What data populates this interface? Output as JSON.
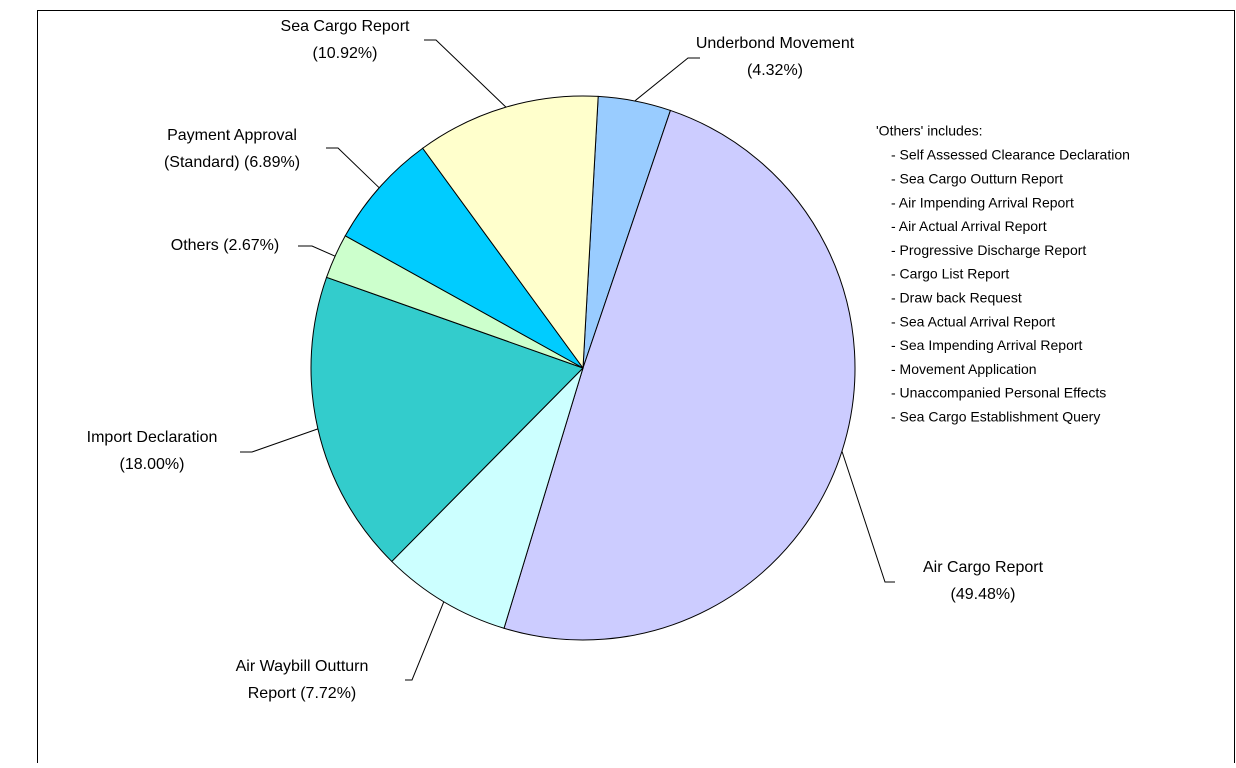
{
  "chart_data": {
    "type": "pie",
    "values": [
      4.32,
      49.48,
      7.72,
      18.0,
      2.67,
      6.89,
      10.92
    ],
    "value_labels": [
      [
        "Underbond Movement",
        "(4.32%)"
      ],
      [
        "Air Cargo Report",
        "(49.48%)"
      ],
      [
        "Air Waybill Outturn",
        "Report (7.72%)"
      ],
      [
        "Import Declaration",
        "(18.00%)"
      ],
      [
        "Others (2.67%)"
      ],
      [
        "Payment Approval",
        "(Standard) (6.89%)"
      ],
      [
        "Sea Cargo Report",
        "(10.92%)"
      ]
    ],
    "colors": [
      "#99ccff",
      "#ccccff",
      "#ccffff",
      "#33cccc",
      "#ccffcc",
      "#00ccff",
      "#ffffcc"
    ],
    "annotation": {
      "title": "'Others' includes:",
      "items": [
        "- Self Assessed Clearance Declaration",
        "- Sea Cargo Outturn Report",
        "- Air Impending Arrival Report",
        "- Air Actual Arrival Report",
        "- Progressive Discharge Report",
        "- Cargo List Report",
        "- Draw back Request",
        "- Sea Actual Arrival Report",
        "- Sea Impending Arrival Report",
        "- Movement Application",
        "- Unaccompanied Personal Effects",
        "- Sea Cargo Establishment Query"
      ]
    }
  }
}
